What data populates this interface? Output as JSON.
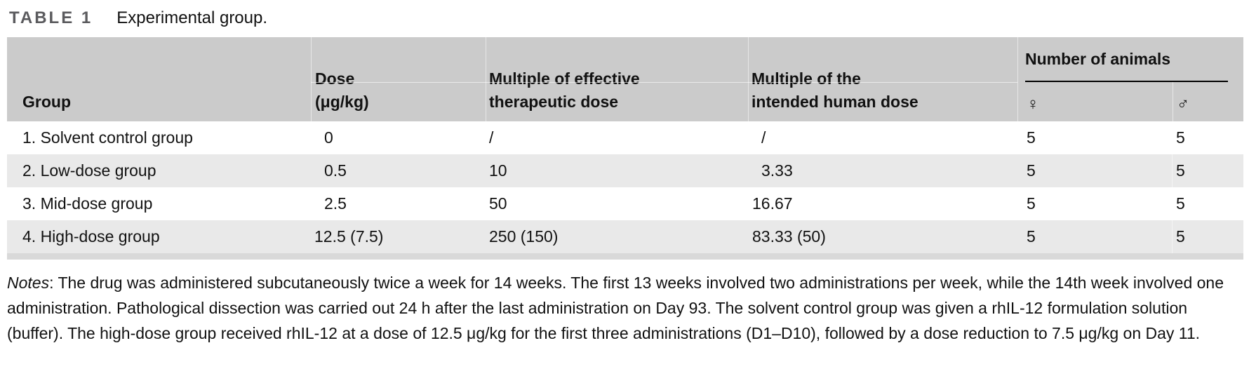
{
  "title": {
    "label": "TABLE 1",
    "caption": "Experimental group."
  },
  "table": {
    "columns": {
      "group": "Group",
      "dose_line1": "Dose",
      "dose_line2": "(μg/kg)",
      "mult_eff_line1": "Multiple of effective",
      "mult_eff_line2": "therapeutic dose",
      "mult_int_line1": "Multiple of the",
      "mult_int_line2": "intended human dose",
      "animals_spanner": "Number of animals",
      "female_symbol": "♀",
      "male_symbol": "♂"
    },
    "rows": [
      {
        "group": "1. Solvent control group",
        "dose": "0",
        "mult_eff": "/",
        "mult_int": "/",
        "female": "5",
        "male": "5"
      },
      {
        "group": "2. Low-dose group",
        "dose": "0.5",
        "mult_eff": "10",
        "mult_int": "3.33",
        "female": "5",
        "male": "5"
      },
      {
        "group": "3. Mid-dose group",
        "dose": "2.5",
        "mult_eff": "50",
        "mult_int": "16.67",
        "female": "5",
        "male": "5"
      },
      {
        "group": "4. High-dose group",
        "dose": "12.5 (7.5)",
        "mult_eff": "250 (150)",
        "mult_int": "83.33 (50)",
        "female": "5",
        "male": "5"
      }
    ]
  },
  "notes": {
    "label": "Notes",
    "text": ": The drug was administered subcutaneously twice a week for 14 weeks. The first 13 weeks involved two administrations per week, while the 14th week involved one administration. Pathological dissection was carried out 24 h after the last administration on Day 93. The solvent control group was given a rhIL-12 formulation solution (buffer). The high-dose group received rhIL-12 at a dose of 12.5 μg/kg for the first three administrations (D1–D10), followed by a dose reduction to 7.5 μg/kg on Day 11."
  },
  "colors": {
    "header_bg": "#cbcbcb",
    "row_alt_bg": "#e9e9e9",
    "bottom_strip": "#d9d9d9",
    "title_label": "#5b5b5e",
    "text": "#111111",
    "rule": "#000000"
  }
}
